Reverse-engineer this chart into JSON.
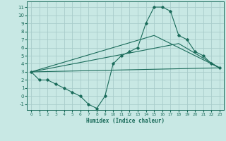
{
  "title": "",
  "xlabel": "Humidex (Indice chaleur)",
  "ylabel": "",
  "xlim": [
    -0.5,
    23.5
  ],
  "ylim": [
    -1.7,
    11.7
  ],
  "xticks": [
    0,
    1,
    2,
    3,
    4,
    5,
    6,
    7,
    8,
    9,
    10,
    11,
    12,
    13,
    14,
    15,
    16,
    17,
    18,
    19,
    20,
    21,
    22,
    23
  ],
  "yticks": [
    -1,
    0,
    1,
    2,
    3,
    4,
    5,
    6,
    7,
    8,
    9,
    10,
    11
  ],
  "background_color": "#c8e8e4",
  "grid_color": "#a8ccca",
  "line_color": "#1a6b5a",
  "main_line": {
    "x": [
      0,
      1,
      2,
      3,
      4,
      5,
      6,
      7,
      8,
      9,
      10,
      11,
      12,
      13,
      14,
      15,
      16,
      17,
      18,
      19,
      20,
      21,
      22,
      23
    ],
    "y": [
      3,
      2,
      2,
      1.5,
      1,
      0.5,
      0,
      -1,
      -1.5,
      0,
      4,
      5,
      5.5,
      6,
      9,
      11,
      11,
      10.5,
      7.5,
      7,
      5.5,
      5,
      4,
      3.5
    ]
  },
  "extra_lines": [
    {
      "x": [
        0,
        15,
        23
      ],
      "y": [
        3,
        7.5,
        3.5
      ]
    },
    {
      "x": [
        0,
        18,
        23
      ],
      "y": [
        3,
        6.5,
        3.5
      ]
    },
    {
      "x": [
        0,
        23
      ],
      "y": [
        3,
        3.5
      ]
    }
  ]
}
